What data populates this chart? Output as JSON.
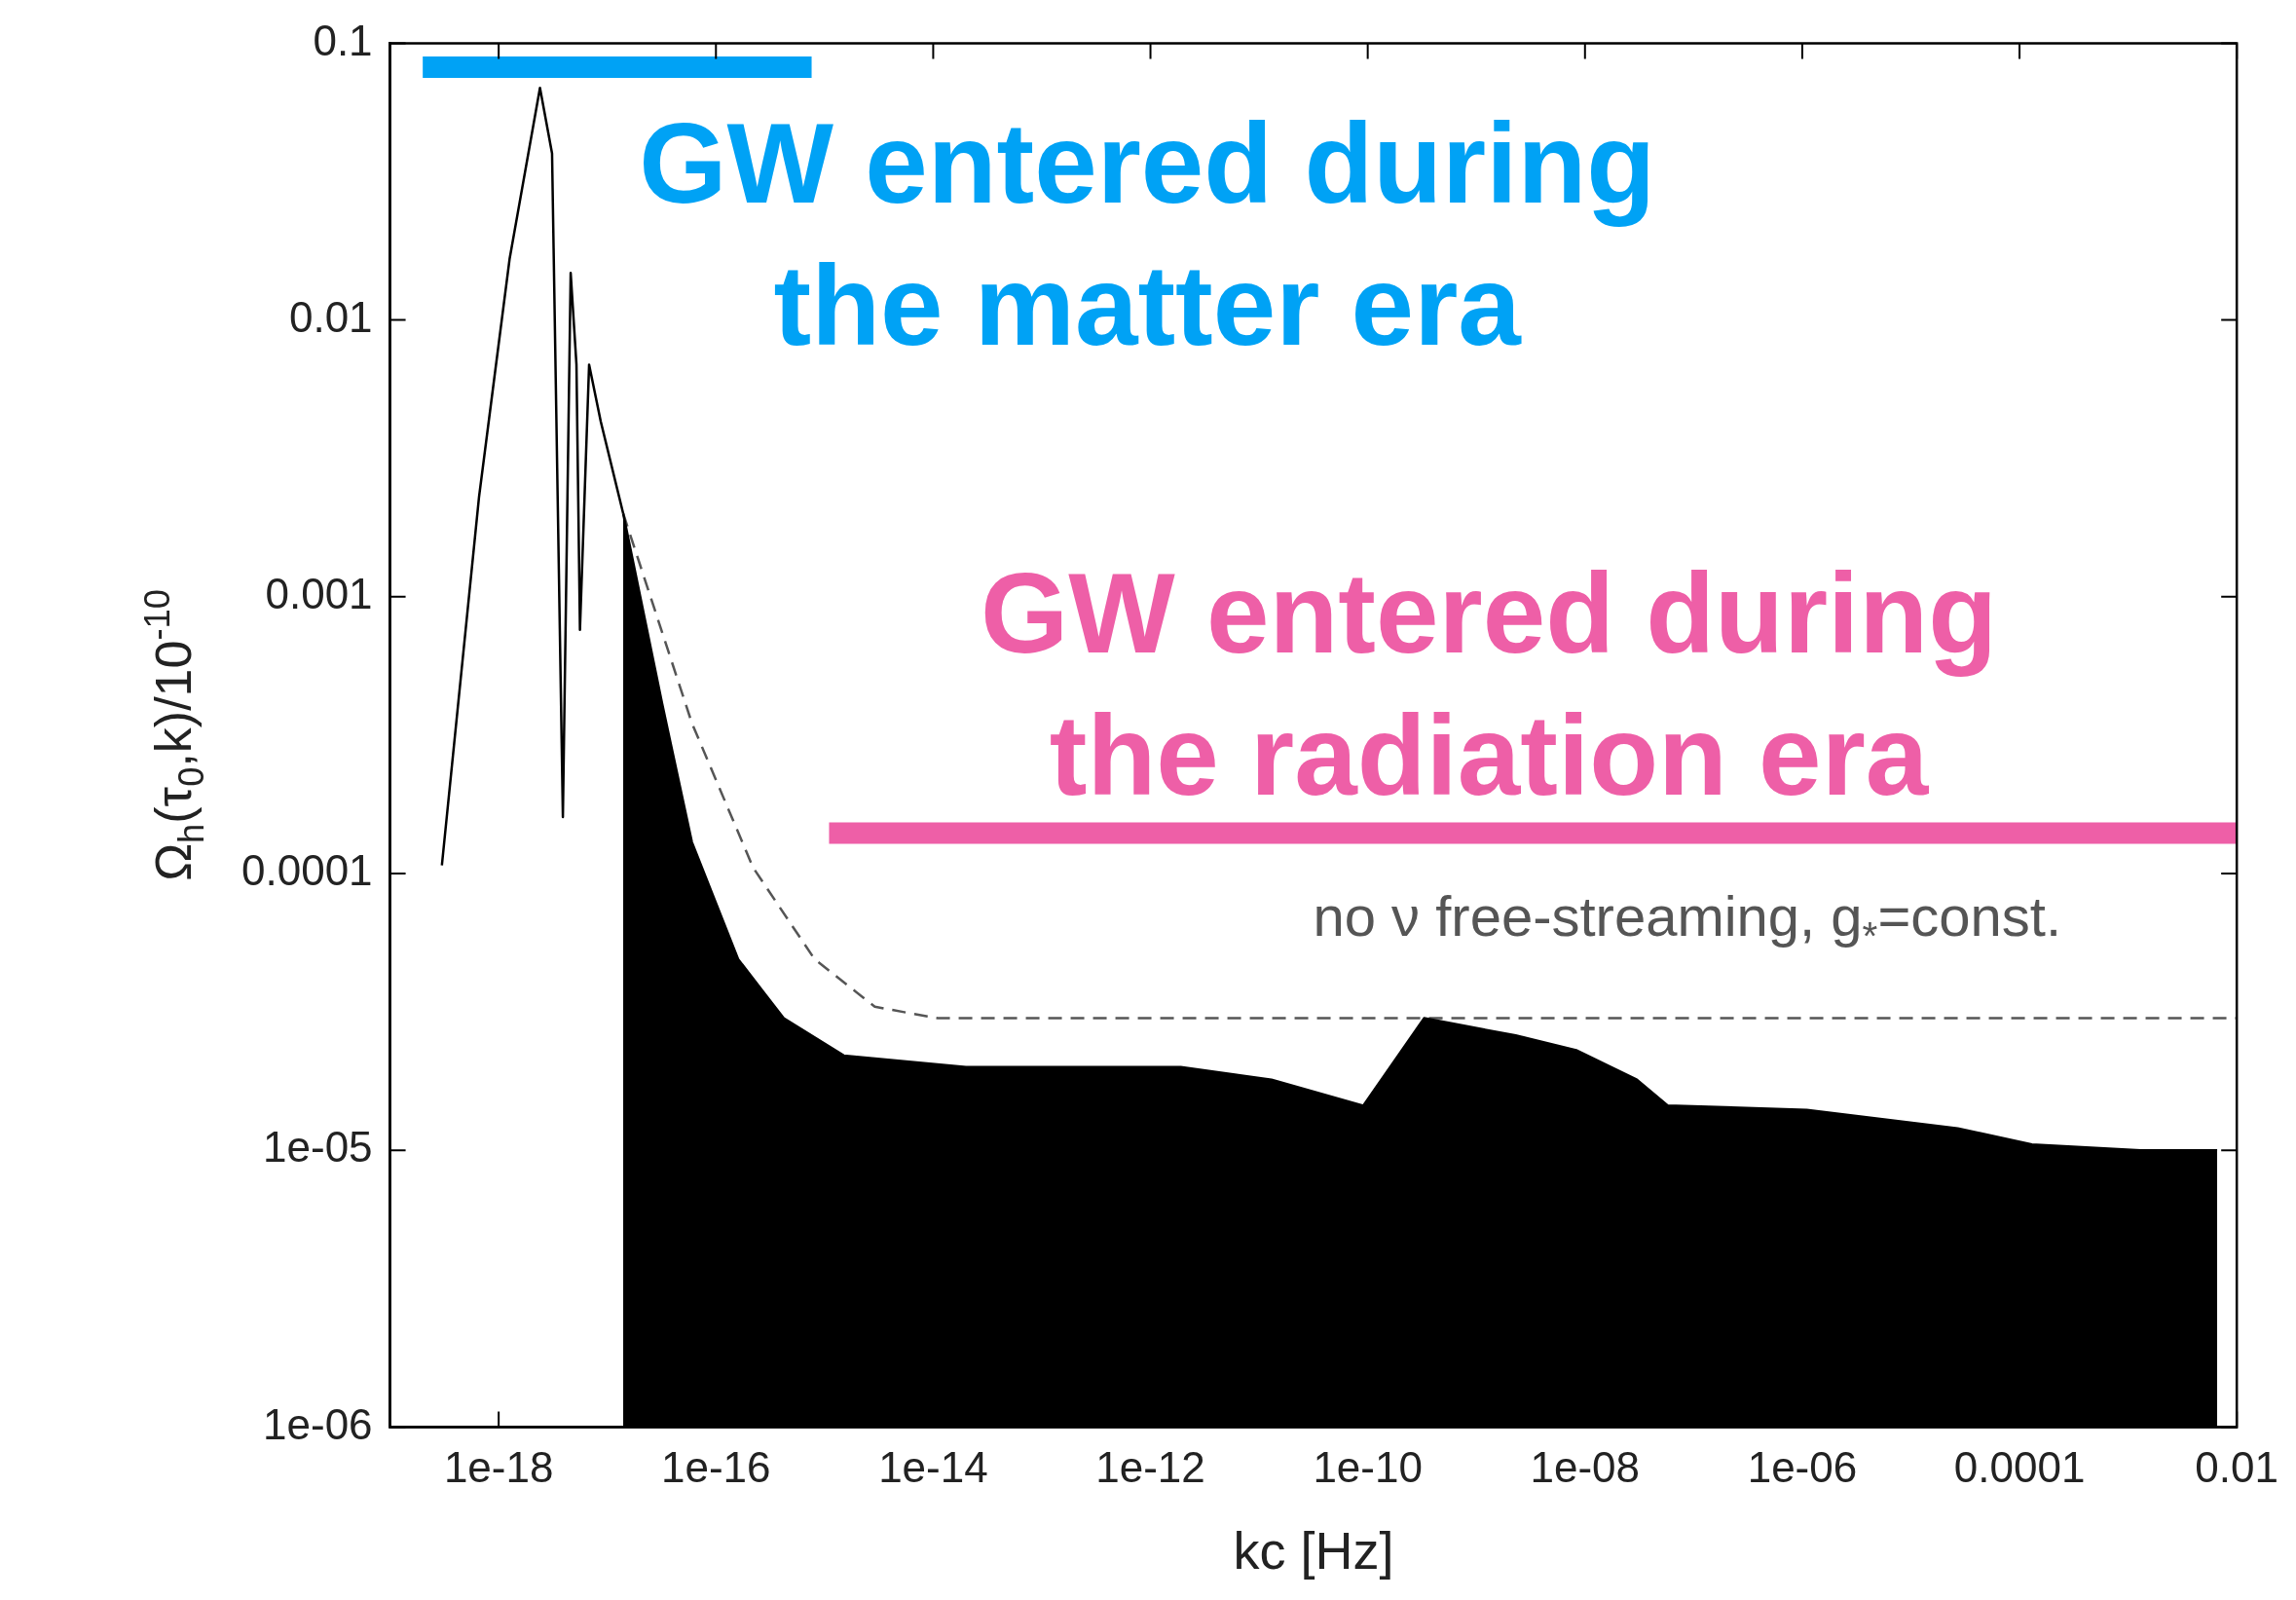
{
  "chart_data": {
    "type": "line",
    "xlabel": "kc [Hz]",
    "ylabel": "Ω$_{h}$(τ$_{0}$,k)/10$^{-10}$",
    "log": "xy",
    "grid": false,
    "legend": false,
    "marker": "none",
    "xlim": [
      1e-19,
      0.01
    ],
    "ylim": [
      1e-06,
      0.1
    ],
    "xticks": [
      {
        "value": 1e-18,
        "label": "1e-18"
      },
      {
        "value": 1e-16,
        "label": "1e-16"
      },
      {
        "value": 1e-14,
        "label": "1e-14"
      },
      {
        "value": 1e-12,
        "label": "1e-12"
      },
      {
        "value": 1e-10,
        "label": "1e-10"
      },
      {
        "value": 1e-08,
        "label": "1e-08"
      },
      {
        "value": 1e-06,
        "label": "1e-06"
      },
      {
        "value": 0.0001,
        "label": "0.0001"
      },
      {
        "value": 0.01,
        "label": "0.01"
      }
    ],
    "yticks": [
      {
        "value": 1e-06,
        "label": "1e-06"
      },
      {
        "value": 1e-05,
        "label": "1e-05"
      },
      0.0001,
      0.001,
      0.01,
      0.1
    ],
    "series": [
      {
        "type": "line",
        "color": "#000000",
        "x": [
          3e-19,
          6.6e-19,
          1.26e-18,
          2.4e-18,
          3.1e-18,
          3.9e-18,
          4.6e-18,
          5.2e-18,
          5.6e-18,
          6.8e-18,
          8.7e-18,
          1.4e-17
        ],
        "values": [
          0.000107,
          0.0023,
          0.0166,
          0.069,
          0.04,
          0.00016,
          0.0148,
          0.0069,
          0.00076,
          0.0069,
          0.0043,
          0.002
        ]
      },
      {
        "type": "area",
        "color": "#000000",
        "x": [
          1.4e-17,
          3.2e-17,
          6e-17,
          1.6e-16,
          4.2e-16,
          1.5e-15,
          2e-14,
          1.9e-12,
          1.3e-11,
          9.1e-11,
          3.3e-10,
          2.3e-09,
          8.3e-09,
          3e-08,
          5.8e-08,
          1.1e-06,
          2.7e-05,
          0.00013,
          0.0013,
          0.0066
        ],
        "values": [
          0.002,
          0.00041,
          0.00013,
          4.9e-05,
          3e-05,
          2.2e-05,
          2e-05,
          2e-05,
          1.8e-05,
          1.45e-05,
          3e-05,
          2.6e-05,
          2.3e-05,
          1.8e-05,
          1.45e-05,
          1.4e-05,
          1.2e-05,
          1.05e-05,
          1e-05,
          1e-05
        ]
      },
      {
        "type": "line",
        "name": "no ν free-streaming, g$_{*}$=const.",
        "color": "#555555",
        "line_style": "dashed",
        "x": [
          1.4e-17,
          6e-17,
          2.2e-16,
          8.1e-16,
          2.9e-15,
          1.1e-14,
          0.01
        ],
        "values": [
          0.002,
          0.00035,
          0.000105,
          4.9e-05,
          3.3e-05,
          3e-05,
          3e-05
        ]
      },
      {
        "type": "line",
        "name": "GW entered during\nthe matter era",
        "color": "#00a2f5",
        "x": [
          2e-19,
          7.6e-16
        ],
        "values": [
          0.082,
          0.082
        ]
      },
      {
        "type": "line",
        "name": "GW entered during\nthe radiation era",
        "color": "#ee5fa7",
        "x": [
          1.1e-15,
          0.01
        ],
        "values": [
          0.00014,
          0.00014
        ]
      }
    ]
  }
}
